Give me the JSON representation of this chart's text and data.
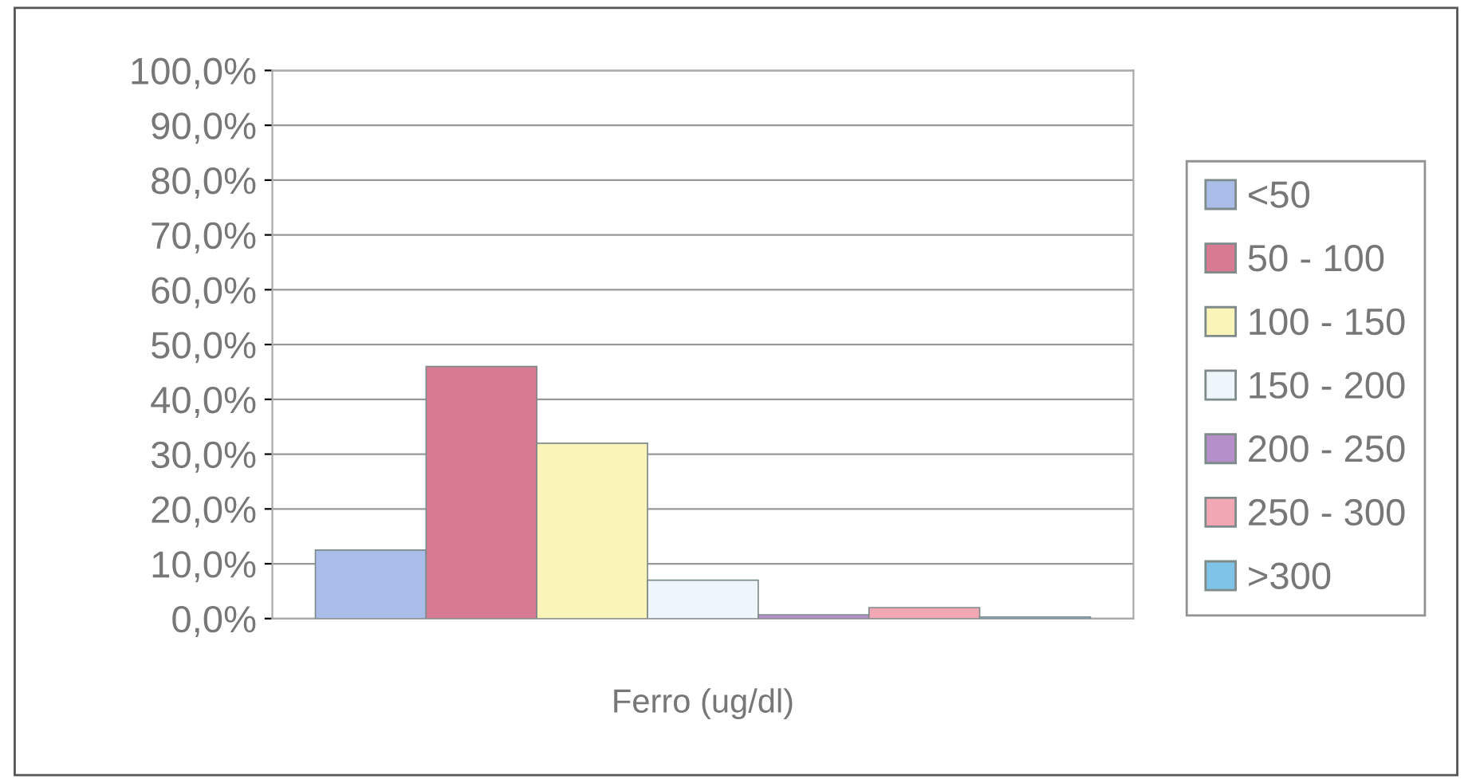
{
  "chart_data": {
    "type": "bar",
    "xlabel": "Ferro (ug/dl)",
    "categories": [
      null
    ],
    "series": [
      {
        "name": "<50",
        "color": "#a9bde8",
        "values": [
          12.5
        ]
      },
      {
        "name": "50 - 100",
        "color": "#d97a93",
        "values": [
          46
        ]
      },
      {
        "name": "100 - 150",
        "color": "#fbf4b8",
        "values": [
          32
        ]
      },
      {
        "name": "150 - 200",
        "color": "#eef6fb",
        "values": [
          7
        ]
      },
      {
        "name": "200 - 250",
        "color": "#b58fc8",
        "values": [
          0.7
        ]
      },
      {
        "name": "250 - 300",
        "color": "#f2a7b5",
        "values": [
          2
        ]
      },
      {
        "name": ">300",
        "color": "#7fc3e8",
        "values": [
          0.3
        ]
      }
    ],
    "ylim": [
      0,
      100
    ],
    "yticks": [
      {
        "value": 0,
        "label": "0,0%"
      },
      {
        "value": 10,
        "label": "10,0%"
      },
      {
        "value": 20,
        "label": "20,0%"
      },
      {
        "value": 30,
        "label": "30,0%"
      },
      {
        "value": 40,
        "label": "40,0%"
      },
      {
        "value": 50,
        "label": "50,0%"
      },
      {
        "value": 60,
        "label": "60,0%"
      },
      {
        "value": 70,
        "label": "70,0%"
      },
      {
        "value": 80,
        "label": "80,0%"
      },
      {
        "value": 90,
        "label": "90,0%"
      },
      {
        "value": 100,
        "label": "100,0%"
      }
    ],
    "grid": "y",
    "legend": "right"
  }
}
